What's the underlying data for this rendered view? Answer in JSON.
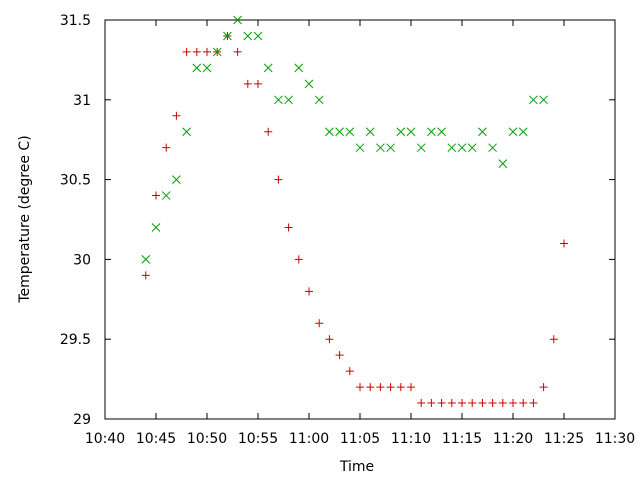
{
  "chart_data": {
    "type": "scatter",
    "title": "",
    "xlabel": "Time",
    "ylabel": "Temperature (degree C)",
    "x_unit": "time of day (HH:MM)",
    "xlim": [
      "10:40",
      "11:30"
    ],
    "ylim": [
      29,
      31.5
    ],
    "xticks": [
      "10:40",
      "10:45",
      "10:50",
      "10:55",
      "11:00",
      "11:05",
      "11:10",
      "11:15",
      "11:20",
      "11:25",
      "11:30"
    ],
    "yticks": [
      "29",
      "29.5",
      "30",
      "30.5",
      "31",
      "31.5"
    ],
    "grid": false,
    "legend": "none",
    "series": [
      {
        "marker": "plus",
        "color": "#cc0000",
        "points": [
          [
            "10:44",
            29.9
          ],
          [
            "10:45",
            30.4
          ],
          [
            "10:46",
            30.7
          ],
          [
            "10:47",
            30.9
          ],
          [
            "10:48",
            31.3
          ],
          [
            "10:49",
            31.3
          ],
          [
            "10:50",
            31.3
          ],
          [
            "10:51",
            31.3
          ],
          [
            "10:52",
            31.4
          ],
          [
            "10:53",
            31.3
          ],
          [
            "10:54",
            31.1
          ],
          [
            "10:55",
            31.1
          ],
          [
            "10:56",
            30.8
          ],
          [
            "10:57",
            30.5
          ],
          [
            "10:58",
            30.2
          ],
          [
            "10:59",
            30.0
          ],
          [
            "11:00",
            29.8
          ],
          [
            "11:01",
            29.6
          ],
          [
            "11:02",
            29.5
          ],
          [
            "11:03",
            29.4
          ],
          [
            "11:04",
            29.3
          ],
          [
            "11:05",
            29.2
          ],
          [
            "11:06",
            29.2
          ],
          [
            "11:07",
            29.2
          ],
          [
            "11:08",
            29.2
          ],
          [
            "11:09",
            29.2
          ],
          [
            "11:10",
            29.2
          ],
          [
            "11:11",
            29.1
          ],
          [
            "11:12",
            29.1
          ],
          [
            "11:13",
            29.1
          ],
          [
            "11:14",
            29.1
          ],
          [
            "11:15",
            29.1
          ],
          [
            "11:16",
            29.1
          ],
          [
            "11:17",
            29.1
          ],
          [
            "11:18",
            29.1
          ],
          [
            "11:19",
            29.1
          ],
          [
            "11:20",
            29.1
          ],
          [
            "11:21",
            29.1
          ],
          [
            "11:22",
            29.1
          ],
          [
            "11:23",
            29.2
          ],
          [
            "11:24",
            29.5
          ],
          [
            "11:25",
            30.1
          ]
        ]
      },
      {
        "marker": "cross",
        "color": "#00a000",
        "points": [
          [
            "10:44",
            30.0
          ],
          [
            "10:45",
            30.2
          ],
          [
            "10:46",
            30.4
          ],
          [
            "10:47",
            30.5
          ],
          [
            "10:48",
            30.8
          ],
          [
            "10:49",
            31.2
          ],
          [
            "10:50",
            31.2
          ],
          [
            "10:51",
            31.3
          ],
          [
            "10:52",
            31.4
          ],
          [
            "10:53",
            31.5
          ],
          [
            "10:54",
            31.4
          ],
          [
            "10:55",
            31.4
          ],
          [
            "10:56",
            31.2
          ],
          [
            "10:57",
            31.0
          ],
          [
            "10:58",
            31.0
          ],
          [
            "10:59",
            31.2
          ],
          [
            "11:00",
            31.1
          ],
          [
            "11:01",
            31.0
          ],
          [
            "11:02",
            30.8
          ],
          [
            "11:03",
            30.8
          ],
          [
            "11:04",
            30.8
          ],
          [
            "11:05",
            30.7
          ],
          [
            "11:06",
            30.8
          ],
          [
            "11:07",
            30.7
          ],
          [
            "11:08",
            30.7
          ],
          [
            "11:09",
            30.8
          ],
          [
            "11:10",
            30.8
          ],
          [
            "11:11",
            30.7
          ],
          [
            "11:12",
            30.8
          ],
          [
            "11:13",
            30.8
          ],
          [
            "11:14",
            30.7
          ],
          [
            "11:15",
            30.7
          ],
          [
            "11:16",
            30.7
          ],
          [
            "11:17",
            30.8
          ],
          [
            "11:18",
            30.7
          ],
          [
            "11:19",
            30.6
          ],
          [
            "11:20",
            30.8
          ],
          [
            "11:21",
            30.8
          ],
          [
            "11:22",
            31.0
          ],
          [
            "11:23",
            31.0
          ]
        ]
      }
    ]
  }
}
